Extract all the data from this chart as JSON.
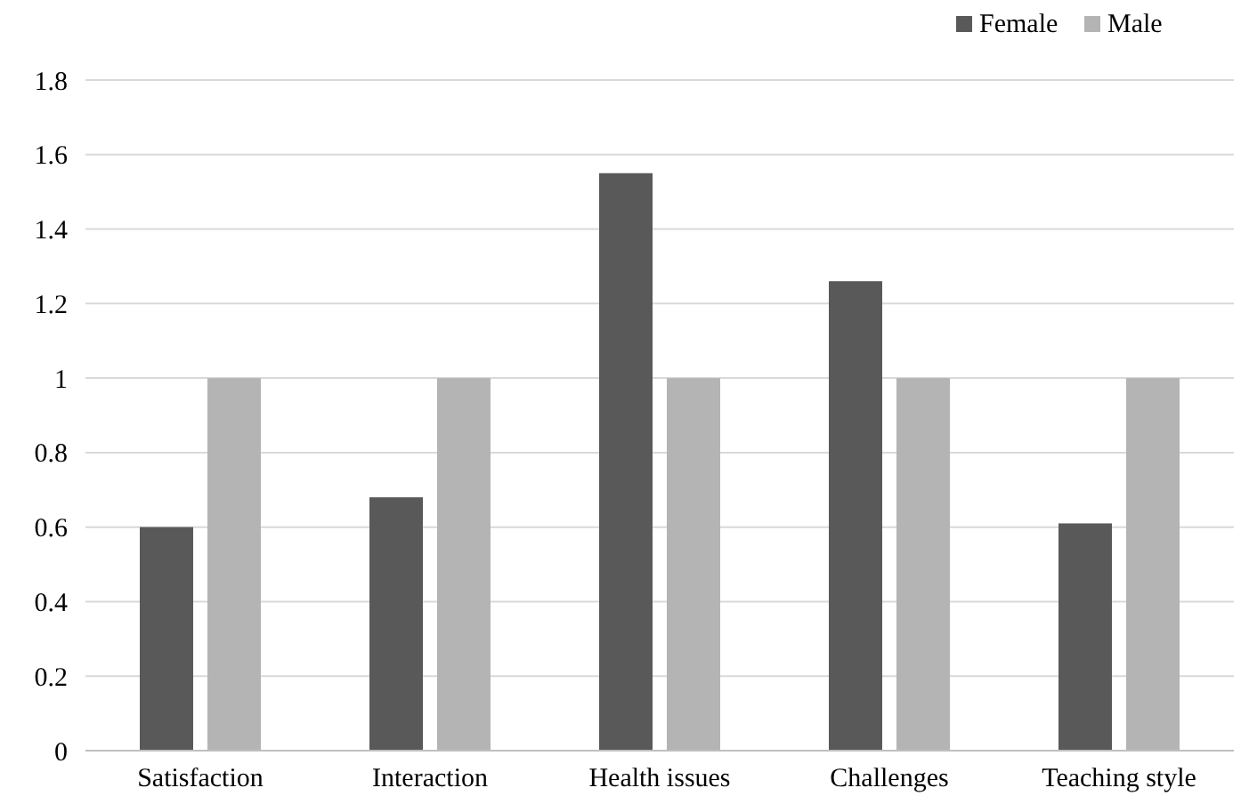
{
  "chart_data": {
    "type": "bar",
    "categories": [
      "Satisfaction",
      "Interaction",
      "Health issues",
      "Challenges",
      "Teaching style"
    ],
    "series": [
      {
        "name": "Female",
        "color": "#595959",
        "values": [
          0.6,
          0.68,
          1.55,
          1.26,
          0.61
        ]
      },
      {
        "name": "Male",
        "color": "#b4b4b4",
        "values": [
          1,
          1,
          1,
          1,
          1
        ]
      }
    ],
    "ylim": [
      0,
      1.8
    ],
    "yticks": [
      0,
      0.2,
      0.4,
      0.6,
      0.8,
      1,
      1.2,
      1.4,
      1.6,
      1.8
    ],
    "grid": "y",
    "legend": "top right"
  }
}
